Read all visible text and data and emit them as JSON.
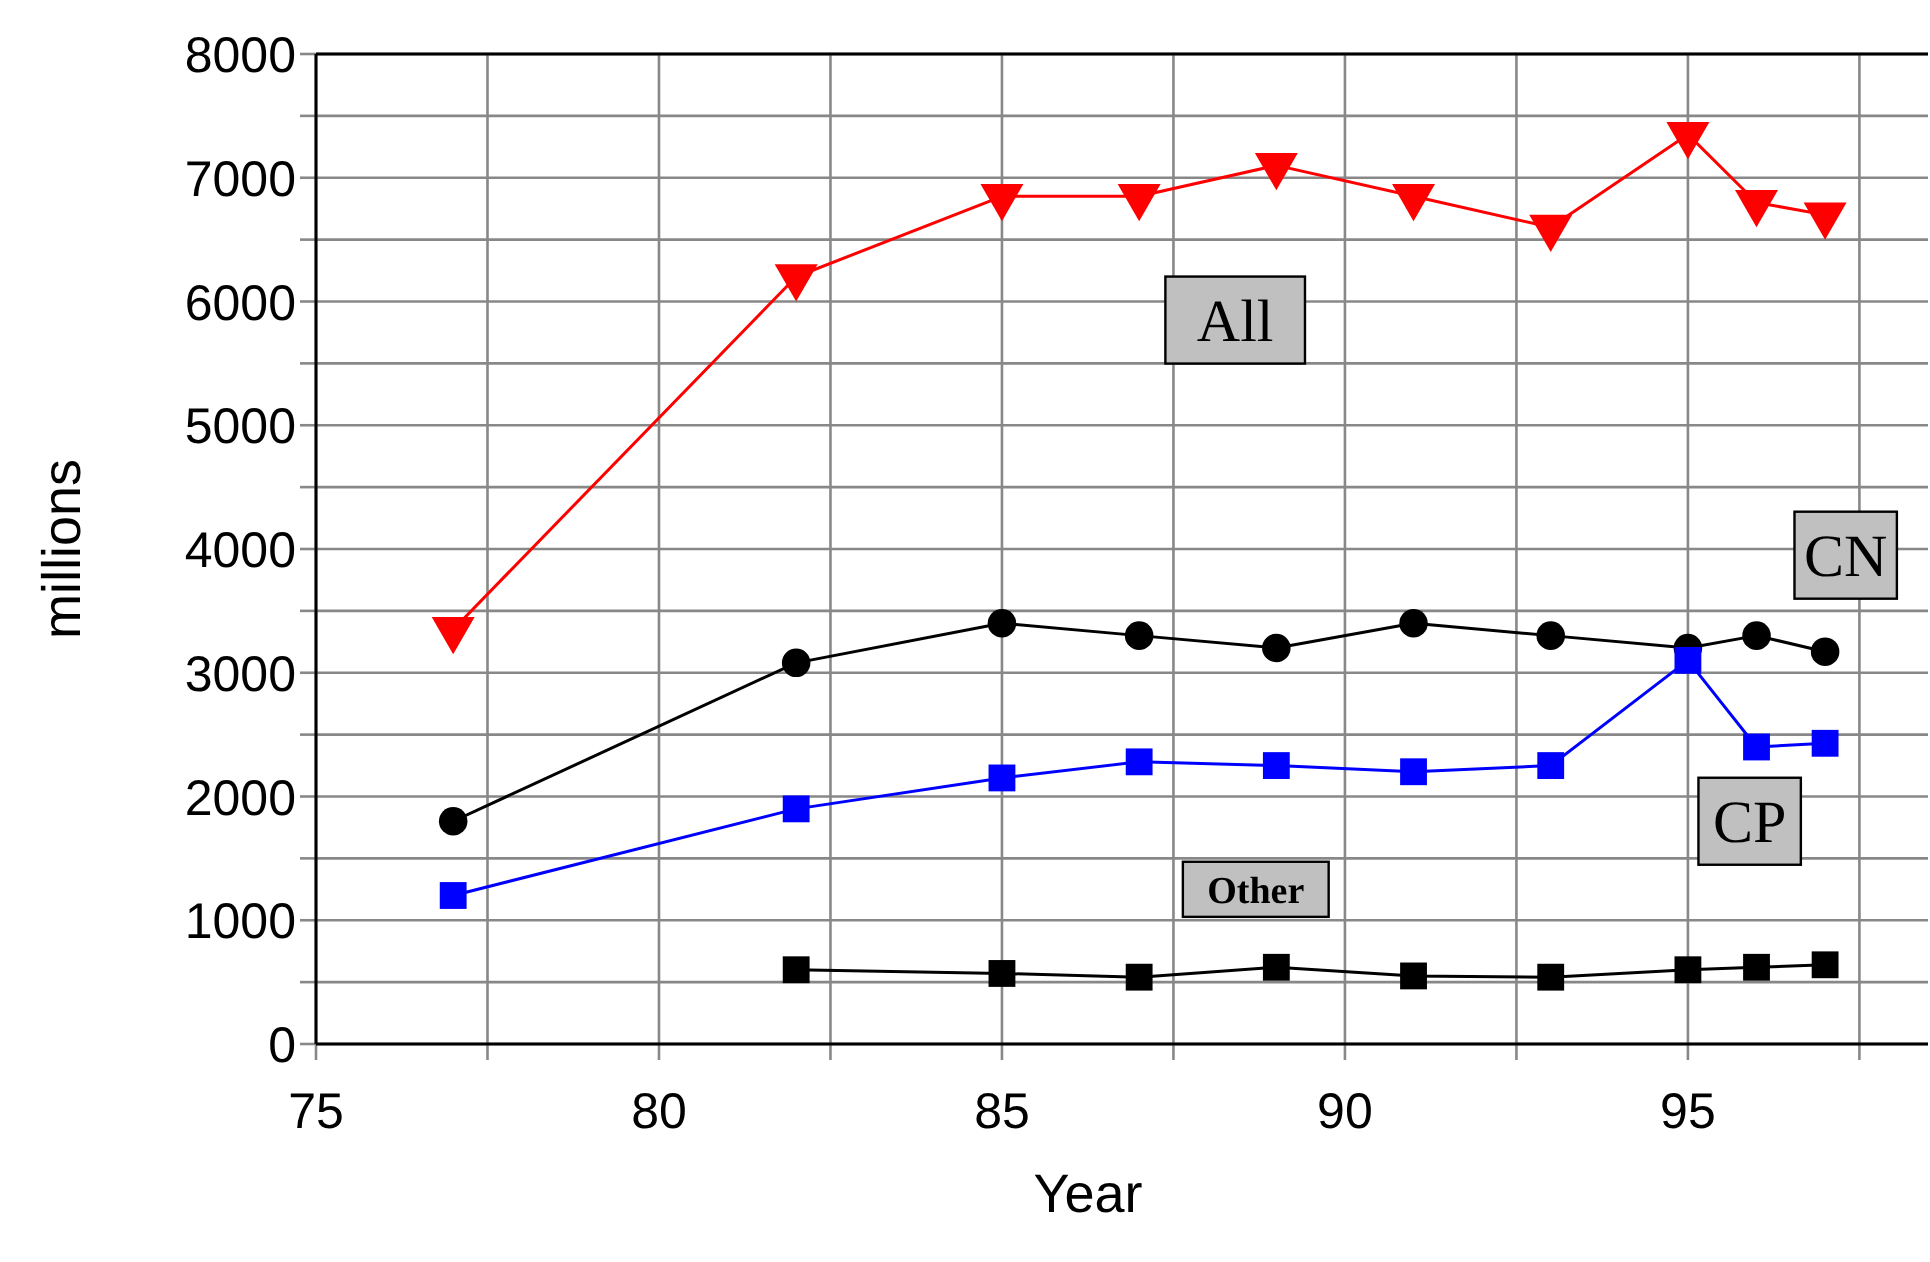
{
  "chart_data": {
    "type": "line",
    "xlabel": "Year",
    "ylabel": "millions",
    "xlim": [
      75,
      98.5
    ],
    "xticks": [
      75,
      {
        "value": 77.5,
        "label": null
      },
      80,
      {
        "value": 82.5,
        "label": null
      },
      85,
      {
        "value": 87.5,
        "label": null
      },
      90,
      {
        "value": 92.5,
        "label": null
      },
      95,
      {
        "value": 97.5,
        "label": null
      }
    ],
    "ylim": [
      0,
      8000
    ],
    "yticks": [
      0,
      {
        "value": 500,
        "label": null
      },
      1000,
      {
        "value": 1500,
        "label": null
      },
      2000,
      {
        "value": 2500,
        "label": null
      },
      3000,
      {
        "value": 3500,
        "label": null
      },
      4000,
      {
        "value": 4500,
        "label": null
      },
      5000,
      {
        "value": 5500,
        "label": null
      },
      6000,
      {
        "value": 6500,
        "label": null
      },
      7000,
      {
        "value": 7500,
        "label": null
      },
      8000
    ],
    "grid": true,
    "line_style": "solid",
    "series": [
      {
        "name": "All",
        "color": "#ff0000",
        "marker": "triangle",
        "x": [
          77,
          82,
          85,
          87,
          89,
          91,
          93,
          95,
          96,
          97
        ],
        "values": [
          3350,
          6200,
          6850,
          6850,
          7100,
          6850,
          6600,
          7350,
          6800,
          6700
        ]
      },
      {
        "name": "CN",
        "color": "#000000",
        "marker": "circle",
        "x": [
          77,
          82,
          85,
          87,
          89,
          91,
          93,
          95,
          96,
          97
        ],
        "values": [
          1800,
          3080,
          3400,
          3300,
          3200,
          3400,
          3300,
          3200,
          3300,
          3170
        ]
      },
      {
        "name": "CP",
        "color": "#0000ff",
        "marker": "square",
        "x": [
          77,
          82,
          85,
          87,
          89,
          91,
          93,
          95,
          96,
          97
        ],
        "values": [
          1200,
          1900,
          2150,
          2280,
          2250,
          2200,
          2250,
          3100,
          2400,
          2430
        ]
      },
      {
        "name": "Other",
        "color": "#000000",
        "marker": "square",
        "x": [
          82,
          85,
          87,
          89,
          91,
          93,
          95,
          96,
          97
        ],
        "values": [
          600,
          570,
          540,
          620,
          550,
          540,
          600,
          620,
          640
        ]
      }
    ]
  }
}
